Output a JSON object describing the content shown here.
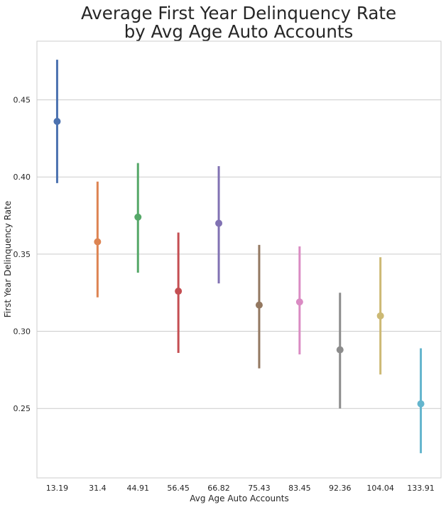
{
  "chart_data": {
    "type": "scatter",
    "subtype": "point-plot-with-error-bars",
    "title": [
      "Average First Year Delinquency Rate",
      "by Avg Age Auto Accounts"
    ],
    "xlabel": "Avg Age Auto Accounts",
    "ylabel": "First Year Delinquency Rate",
    "ylim": [
      0.205,
      0.488
    ],
    "y_ticks": [
      "0.25",
      "0.30",
      "0.35",
      "0.40",
      "0.45"
    ],
    "grid": "horizontal",
    "legend": "none",
    "categories": [
      "13.19",
      "31.4",
      "44.91",
      "56.45",
      "66.82",
      "75.43",
      "83.45",
      "92.36",
      "104.04",
      "133.91"
    ],
    "values": [
      0.436,
      0.358,
      0.374,
      0.326,
      0.37,
      0.317,
      0.319,
      0.288,
      0.31,
      0.253
    ],
    "ci_low": [
      0.396,
      0.322,
      0.338,
      0.286,
      0.331,
      0.276,
      0.285,
      0.25,
      0.272,
      0.221
    ],
    "ci_high": [
      0.476,
      0.397,
      0.409,
      0.364,
      0.407,
      0.356,
      0.355,
      0.325,
      0.348,
      0.289
    ],
    "colors": [
      "#4c72b0",
      "#dd8452",
      "#55a868",
      "#c44e52",
      "#8172b3",
      "#937860",
      "#da8bc3",
      "#8c8c8c",
      "#ccb974",
      "#64b5cd"
    ]
  }
}
